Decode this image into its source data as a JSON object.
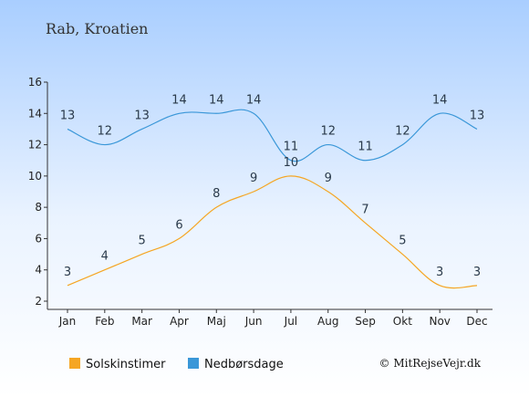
{
  "chart_data": {
    "type": "line",
    "title": "Rab, Kroatien",
    "categories": [
      "Jan",
      "Feb",
      "Mar",
      "Apr",
      "Maj",
      "Jun",
      "Jul",
      "Aug",
      "Sep",
      "Okt",
      "Nov",
      "Dec"
    ],
    "series": [
      {
        "name": "Solskinstimer",
        "color": "#f5a623",
        "values": [
          3,
          4,
          5,
          6,
          8,
          9,
          10,
          9,
          7,
          5,
          3,
          3
        ]
      },
      {
        "name": "Nedbørsdage",
        "color": "#3a97d8",
        "values": [
          13,
          12,
          13,
          14,
          14,
          14,
          11,
          12,
          11,
          12,
          14,
          13
        ]
      }
    ],
    "yticks": [
      "2",
      "4",
      "6",
      "8",
      "10",
      "12",
      "14",
      "16"
    ],
    "ylim": [
      2,
      16
    ],
    "xlabel": "",
    "ylabel": "",
    "grid": false,
    "legend_position": "bottom-left",
    "credit": "© MitRejseVejr.dk"
  }
}
